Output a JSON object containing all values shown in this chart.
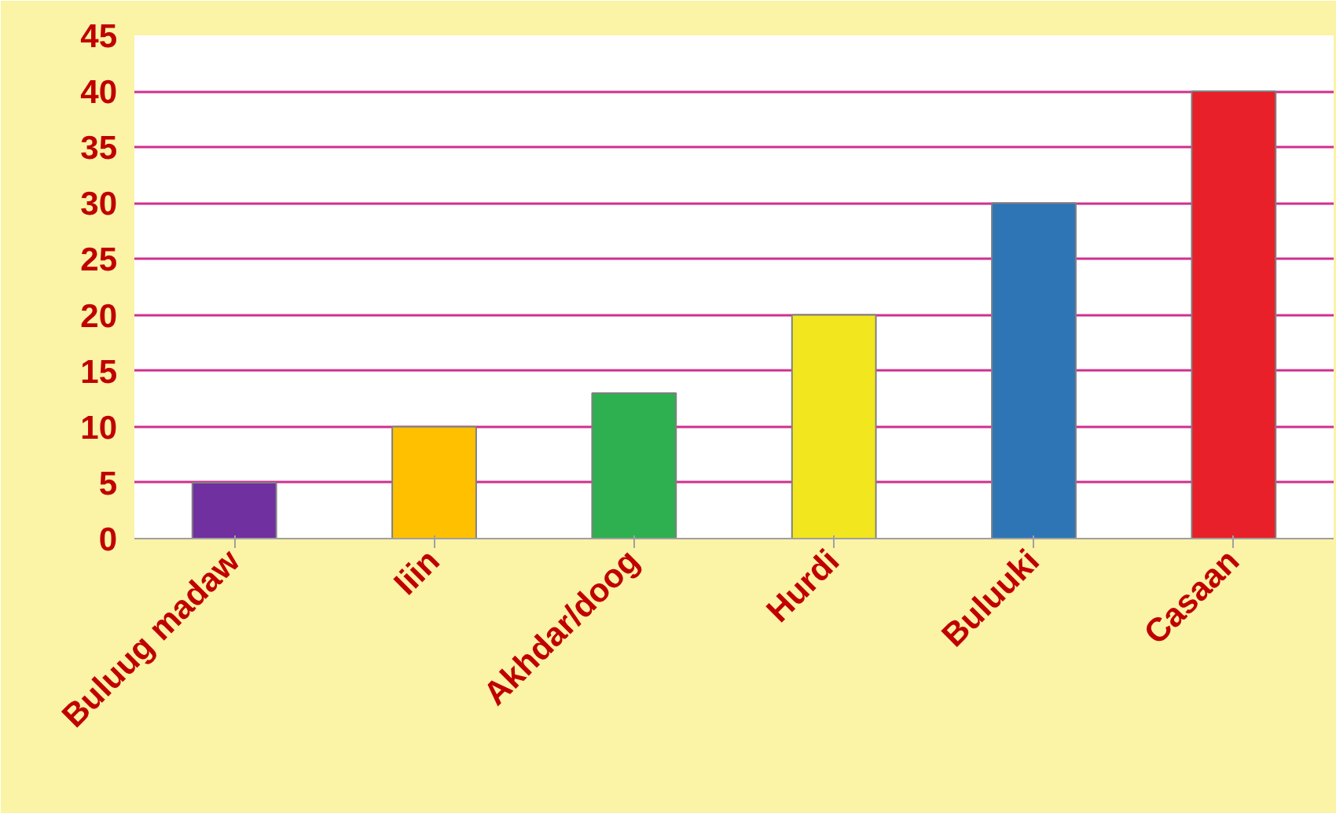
{
  "chart_data": {
    "type": "bar",
    "categories": [
      "Buluug madaw",
      "Iiin",
      "Akhdar/doog",
      "Hurdi",
      "Buluuki",
      "Casaan"
    ],
    "values": [
      5,
      10,
      13,
      20,
      30,
      40
    ],
    "colors": [
      "#7030a0",
      "#ffc000",
      "#2eb050",
      "#f2e61e",
      "#2e75b6",
      "#e8202a"
    ],
    "ylim": [
      0,
      45
    ],
    "yticks": [
      0,
      5,
      10,
      15,
      20,
      25,
      30,
      35,
      40,
      45
    ],
    "grid": "y"
  }
}
